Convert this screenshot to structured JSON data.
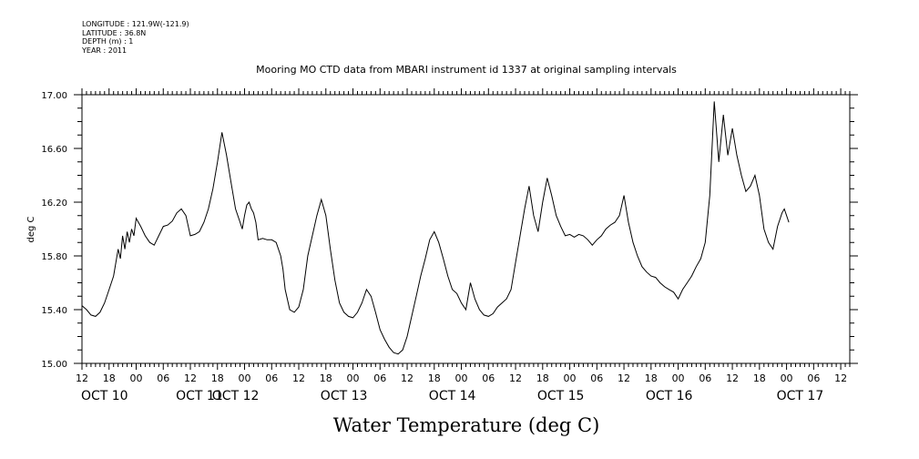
{
  "meta": {
    "longitude": "LONGITUDE : 121.9W(-121.9)",
    "latitude": "LATITUDE : 36.8N",
    "depth": "DEPTH (m) : 1",
    "year": "YEAR : 2011"
  },
  "chart_data": {
    "type": "line",
    "title": "Mooring MO CTD data from MBARI instrument id 1337 at original sampling intervals",
    "xlabel": "Water Temperature (deg C)",
    "ylabel": "deg C",
    "ylim": [
      15.0,
      17.0
    ],
    "yticks": [
      "15.00",
      "15.40",
      "15.80",
      "16.20",
      "16.60",
      "17.00"
    ],
    "xlim_hours": [
      0,
      170
    ],
    "x_tick_labels": [
      "12",
      "18",
      "00",
      "06",
      "12",
      "18",
      "00",
      "06",
      "12",
      "18",
      "00",
      "06",
      "12",
      "18",
      "00",
      "06",
      "12",
      "18",
      "00",
      "06",
      "12",
      "18",
      "00",
      "06",
      "12",
      "18",
      "00",
      "06",
      "12"
    ],
    "date_labels": [
      "OCT 10",
      "OCT 11",
      "OCT 12",
      "OCT 13",
      "OCT 14",
      "OCT 15",
      "OCT 16",
      "OCT 17"
    ],
    "grid": false,
    "series": [
      {
        "x_hours_since_oct10_1200": [
          0,
          1,
          2,
          3,
          4,
          5,
          6,
          7,
          8,
          8.5,
          9,
          9.5,
          10,
          10.5,
          11,
          11.5,
          12,
          13,
          14,
          15,
          16,
          17,
          18,
          19,
          20,
          21,
          22,
          23,
          24,
          25,
          26,
          27,
          28,
          29,
          30,
          31,
          32,
          33,
          34,
          35,
          35.5,
          36,
          36.5,
          37,
          37.5,
          38,
          38.5,
          39,
          40,
          41,
          42,
          43,
          44,
          44.5,
          45,
          46,
          47,
          48,
          49,
          50,
          51,
          52,
          53,
          54,
          55,
          56,
          57,
          58,
          59,
          60,
          61,
          62,
          63,
          64,
          65,
          66,
          67,
          68,
          69,
          70,
          71,
          72,
          73,
          74,
          75,
          76,
          77,
          78,
          79,
          80,
          81,
          82,
          83,
          84,
          85,
          86,
          87,
          88,
          89,
          90,
          91,
          92,
          93,
          94,
          95,
          96,
          97,
          98,
          99,
          100,
          101,
          102,
          103,
          104,
          105,
          106,
          107,
          108,
          109,
          110,
          111,
          112,
          113,
          114,
          115,
          116,
          117,
          118,
          119,
          120,
          121,
          122,
          123,
          124,
          125,
          126,
          127,
          128,
          129,
          130,
          131,
          132,
          133,
          134,
          135,
          136,
          137,
          138,
          139,
          140,
          141,
          142,
          143,
          144,
          145,
          146,
          147,
          148,
          149,
          150,
          151,
          152,
          153,
          154,
          155,
          155.5,
          156,
          156.5,
          157,
          157.5,
          158,
          159,
          160,
          161,
          162,
          163,
          164,
          165,
          166,
          167,
          168,
          169,
          170
        ],
        "values": [
          15.43,
          15.4,
          15.36,
          15.35,
          15.38,
          15.45,
          15.55,
          15.65,
          15.85,
          15.78,
          15.95,
          15.85,
          15.98,
          15.9,
          16.0,
          15.95,
          16.08,
          16.02,
          15.95,
          15.9,
          15.88,
          15.95,
          16.02,
          16.03,
          16.06,
          16.12,
          16.15,
          16.1,
          15.95,
          15.96,
          15.98,
          16.05,
          16.15,
          16.3,
          16.5,
          16.72,
          16.55,
          16.35,
          16.15,
          16.05,
          16.0,
          16.1,
          16.18,
          16.2,
          16.15,
          16.12,
          16.05,
          15.92,
          15.93,
          15.92,
          15.92,
          15.9,
          15.8,
          15.7,
          15.55,
          15.4,
          15.38,
          15.42,
          15.55,
          15.8,
          15.95,
          16.1,
          16.22,
          16.1,
          15.85,
          15.62,
          15.45,
          15.38,
          15.35,
          15.34,
          15.38,
          15.45,
          15.55,
          15.5,
          15.38,
          15.25,
          15.18,
          15.12,
          15.08,
          15.07,
          15.1,
          15.2,
          15.35,
          15.5,
          15.65,
          15.78,
          15.92,
          15.98,
          15.9,
          15.78,
          15.65,
          15.55,
          15.52,
          15.45,
          15.4,
          15.6,
          15.48,
          15.4,
          15.36,
          15.35,
          15.37,
          15.42,
          15.45,
          15.48,
          15.55,
          15.75,
          15.95,
          16.15,
          16.32,
          16.1,
          15.98,
          16.2,
          16.38,
          16.25,
          16.1,
          16.02,
          15.95,
          15.96,
          15.94,
          15.96,
          15.95,
          15.92,
          15.88,
          15.92,
          15.95,
          16.0,
          16.03,
          16.05,
          16.1,
          16.25,
          16.05,
          15.9,
          15.8,
          15.72,
          15.68,
          15.65,
          15.64,
          15.6,
          15.57,
          15.55,
          15.53,
          15.48,
          15.55,
          15.6,
          15.65,
          15.72,
          15.78,
          15.9,
          16.25,
          16.95,
          16.5,
          16.85,
          16.55,
          16.75,
          16.55,
          16.4,
          16.28,
          16.32,
          16.4,
          16.25,
          16.0,
          15.9,
          15.85,
          16.02,
          16.12,
          16.15,
          16.1,
          16.05
        ]
      }
    ]
  }
}
